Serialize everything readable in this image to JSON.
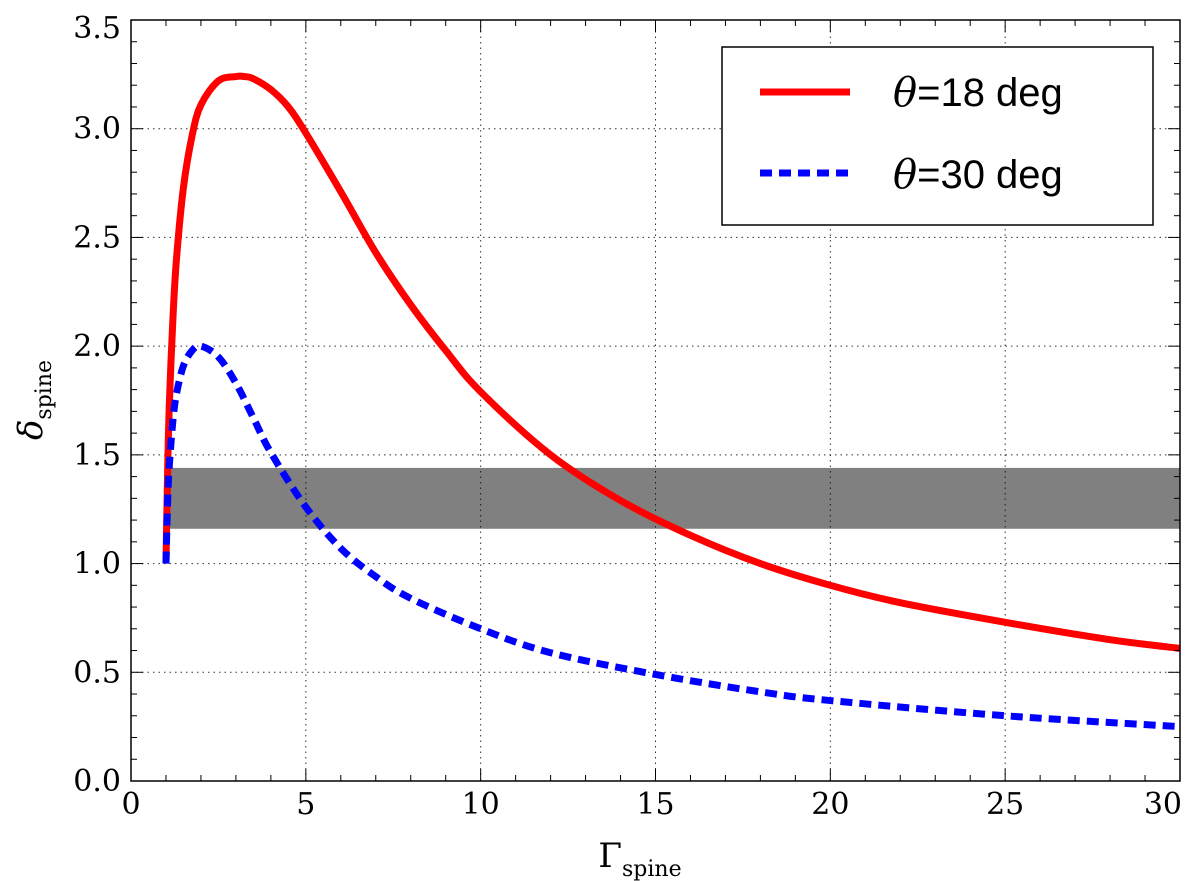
{
  "chart_data": {
    "type": "line",
    "xlabel": "Γ",
    "xlabel_sub": "spine",
    "ylabel": "δ",
    "ylabel_sub": "spine",
    "xlim": [
      0,
      30
    ],
    "ylim": [
      0,
      3.5
    ],
    "xticks": [
      0,
      5,
      10,
      15,
      20,
      25,
      30
    ],
    "yticks": [
      0.0,
      0.5,
      1.0,
      1.5,
      2.0,
      2.5,
      3.0,
      3.5
    ],
    "xtick_labels": [
      "0",
      "5",
      "10",
      "15",
      "20",
      "25",
      "30"
    ],
    "ytick_labels": [
      "0.0",
      "0.5",
      "1.0",
      "1.5",
      "2.0",
      "2.5",
      "3.0",
      "3.5"
    ],
    "grid": true,
    "band": {
      "y_min": 1.16,
      "y_max": 1.44,
      "x_min": 1,
      "x_max": 30,
      "color": "#808080"
    },
    "legend_position": "top-right",
    "series": [
      {
        "name": "θ=18 deg",
        "name_symbol": "θ",
        "name_text": "=18 deg",
        "color": "#ff0000",
        "style": "solid",
        "x": [
          1.0,
          1.05,
          1.1,
          1.2,
          1.3,
          1.5,
          1.75,
          2.0,
          2.5,
          3.0,
          3.24,
          3.5,
          4.0,
          4.5,
          5.0,
          6.0,
          7.0,
          8.0,
          9.0,
          10.0,
          12.0,
          14.0,
          16.0,
          18.0,
          20.0,
          22.0,
          25.0,
          28.0,
          30.0
        ],
        "y": [
          1.0,
          1.45,
          1.75,
          2.13,
          2.4,
          2.73,
          2.97,
          3.11,
          3.22,
          3.24,
          3.24,
          3.23,
          3.18,
          3.1,
          2.98,
          2.71,
          2.43,
          2.19,
          1.98,
          1.79,
          1.5,
          1.29,
          1.13,
          1.0,
          0.9,
          0.82,
          0.73,
          0.65,
          0.61
        ]
      },
      {
        "name": "θ=30 deg",
        "name_symbol": "θ",
        "name_text": "=30 deg",
        "color": "#0000ff",
        "style": "dashed",
        "x": [
          1.0,
          1.05,
          1.1,
          1.2,
          1.3,
          1.5,
          1.75,
          2.0,
          2.5,
          3.0,
          3.5,
          4.0,
          5.0,
          6.0,
          7.0,
          8.0,
          10.0,
          12.0,
          15.0,
          18.0,
          20.0,
          25.0,
          30.0
        ],
        "y": [
          1.0,
          1.3,
          1.46,
          1.66,
          1.78,
          1.91,
          1.98,
          2.0,
          1.95,
          1.83,
          1.67,
          1.51,
          1.26,
          1.07,
          0.94,
          0.84,
          0.7,
          0.59,
          0.49,
          0.41,
          0.37,
          0.3,
          0.25
        ]
      }
    ]
  }
}
